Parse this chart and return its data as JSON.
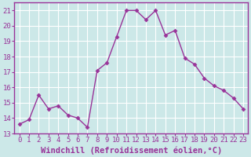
{
  "x": [
    0,
    1,
    2,
    3,
    4,
    5,
    6,
    7,
    8,
    9,
    10,
    11,
    12,
    13,
    14,
    15,
    16,
    17,
    18,
    19,
    20,
    21,
    22,
    23
  ],
  "y": [
    13.6,
    13.9,
    15.5,
    14.6,
    14.8,
    14.2,
    14.0,
    13.4,
    17.1,
    17.6,
    19.3,
    21.0,
    21.0,
    20.4,
    21.0,
    19.4,
    19.7,
    17.9,
    17.5,
    16.6,
    16.1,
    15.8,
    15.3,
    14.6
  ],
  "line_color": "#993399",
  "marker": "D",
  "marker_size": 2.5,
  "bg_color": "#cce8e8",
  "grid_color": "#ffffff",
  "xlabel": "Windchill (Refroidissement éolien,°C)",
  "xlim": [
    -0.5,
    23.5
  ],
  "ylim": [
    13,
    21.5
  ],
  "xticks": [
    0,
    1,
    2,
    3,
    4,
    5,
    6,
    7,
    8,
    9,
    10,
    11,
    12,
    13,
    14,
    15,
    16,
    17,
    18,
    19,
    20,
    21,
    22,
    23
  ],
  "yticks": [
    13,
    14,
    15,
    16,
    17,
    18,
    19,
    20,
    21
  ],
  "tick_fontsize": 6.5,
  "xlabel_fontsize": 7.5,
  "line_width": 1.0,
  "spine_color": "#993399"
}
